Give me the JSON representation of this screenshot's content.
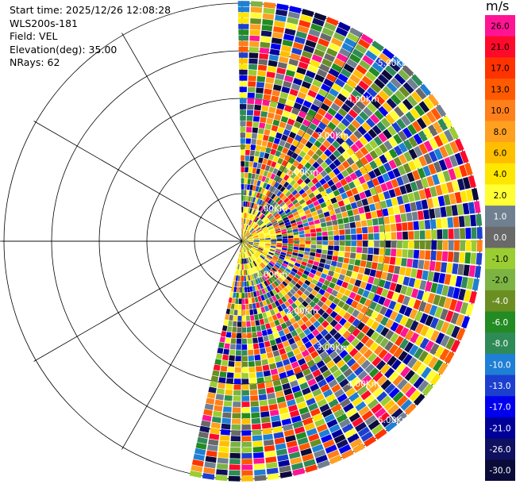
{
  "info": {
    "start_time": "Start time: 2025/12/26 12:08:28",
    "station": "WLS200s-181",
    "field": "Field: VEL",
    "elevation": "Elevation(deg): 35.00",
    "nrays": "NRays: 62"
  },
  "range_labels": [
    "1.00Km",
    "2.00Km",
    "3.00Km",
    "4.00Km",
    "5.00Km"
  ],
  "colorbar": {
    "unit": "m/s",
    "bins": [
      {
        "label": "26.0",
        "color": "#ff1493"
      },
      {
        "label": "21.0",
        "color": "#ff0a2a"
      },
      {
        "label": "17.0",
        "color": "#ff3300"
      },
      {
        "label": "13.0",
        "color": "#ff5a00"
      },
      {
        "label": "10.0",
        "color": "#ff7f1a"
      },
      {
        "label": "8.0",
        "color": "#ffa020"
      },
      {
        "label": "6.0",
        "color": "#ffbf00"
      },
      {
        "label": "4.0",
        "color": "#ffe600"
      },
      {
        "label": "2.0",
        "color": "#ffff33"
      },
      {
        "label": "1.0",
        "color": "#708090"
      },
      {
        "label": "0.0",
        "color": "#696969"
      },
      {
        "label": "-1.0",
        "color": "#9acd32"
      },
      {
        "label": "-2.0",
        "color": "#7cb342"
      },
      {
        "label": "-4.0",
        "color": "#6b8e23"
      },
      {
        "label": "-6.0",
        "color": "#228b22"
      },
      {
        "label": "-8.0",
        "color": "#2e8b57"
      },
      {
        "label": "-10.0",
        "color": "#1e7fd4"
      },
      {
        "label": "-13.0",
        "color": "#1c3fd0"
      },
      {
        "label": "-17.0",
        "color": "#0000ee"
      },
      {
        "label": "-21.0",
        "color": "#000099"
      },
      {
        "label": "-26.0",
        "color": "#101060"
      },
      {
        "label": "-30.0",
        "color": "#0b0b3a"
      }
    ]
  }
}
